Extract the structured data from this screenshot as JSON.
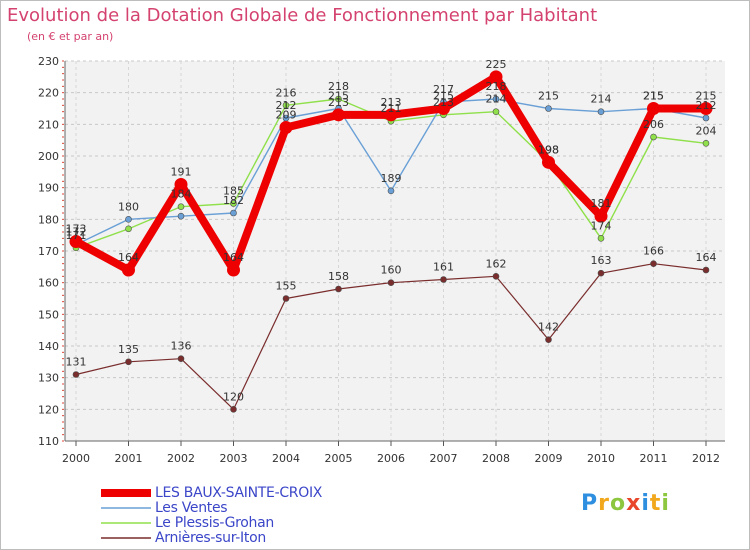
{
  "header": {
    "title": "Evolution de la Dotation Globale de Fonctionnement par Habitant",
    "subtitle": "(en € et par an)"
  },
  "brand": {
    "logo_text": "Proxiti"
  },
  "chart_data": {
    "type": "line",
    "title": "Evolution de la Dotation Globale de Fonctionnement par Habitant",
    "subtitle": "(en € et par an)",
    "xlabel": "",
    "ylabel": "",
    "x": [
      "2000",
      "2001",
      "2002",
      "2003",
      "2004",
      "2005",
      "2006",
      "2007",
      "2008",
      "2009",
      "2010",
      "2011",
      "2012"
    ],
    "ylim": [
      110,
      230
    ],
    "yticks": [
      110,
      120,
      130,
      140,
      150,
      160,
      170,
      180,
      190,
      200,
      210,
      220,
      230
    ],
    "grid": true,
    "legend_position": "bottom-left",
    "series": [
      {
        "name": "LES BAUX-SAINTE-CROIX",
        "color": "#ee0000",
        "values": [
          173,
          164,
          191,
          164,
          209,
          213,
          213,
          215,
          225,
          198,
          181,
          215,
          215
        ],
        "labels": [
          "173",
          "164",
          "191",
          "164",
          "209",
          "213",
          "213",
          "215",
          "225",
          "198",
          "181",
          "215",
          "215"
        ]
      },
      {
        "name": "Les Ventes",
        "color": "#6aa0d6",
        "values": [
          172,
          180,
          181,
          182,
          212,
          215,
          189,
          217,
          218,
          215,
          214,
          215,
          212
        ],
        "labels": [
          "172",
          "180",
          "",
          "182",
          "212",
          "215",
          "189",
          "217",
          "218",
          "215",
          "214",
          "215",
          "212"
        ]
      },
      {
        "name": "Le Plessis-Grohan",
        "color": "#8fe04a",
        "values": [
          171,
          177,
          184,
          185,
          216,
          218,
          211,
          213,
          214,
          198,
          174,
          206,
          204
        ],
        "labels": [
          "171",
          "",
          "184",
          "185",
          "216",
          "218",
          "211",
          "213",
          "214",
          "198",
          "174",
          "206",
          "204"
        ]
      },
      {
        "name": "Arnières-sur-Iton",
        "color": "#7a2d2d",
        "values": [
          131,
          135,
          136,
          120,
          155,
          158,
          160,
          161,
          162,
          142,
          163,
          166,
          164
        ],
        "labels": [
          "131",
          "135",
          "136",
          "120",
          "155",
          "158",
          "160",
          "161",
          "162",
          "142",
          "163",
          "166",
          "164"
        ]
      }
    ]
  }
}
